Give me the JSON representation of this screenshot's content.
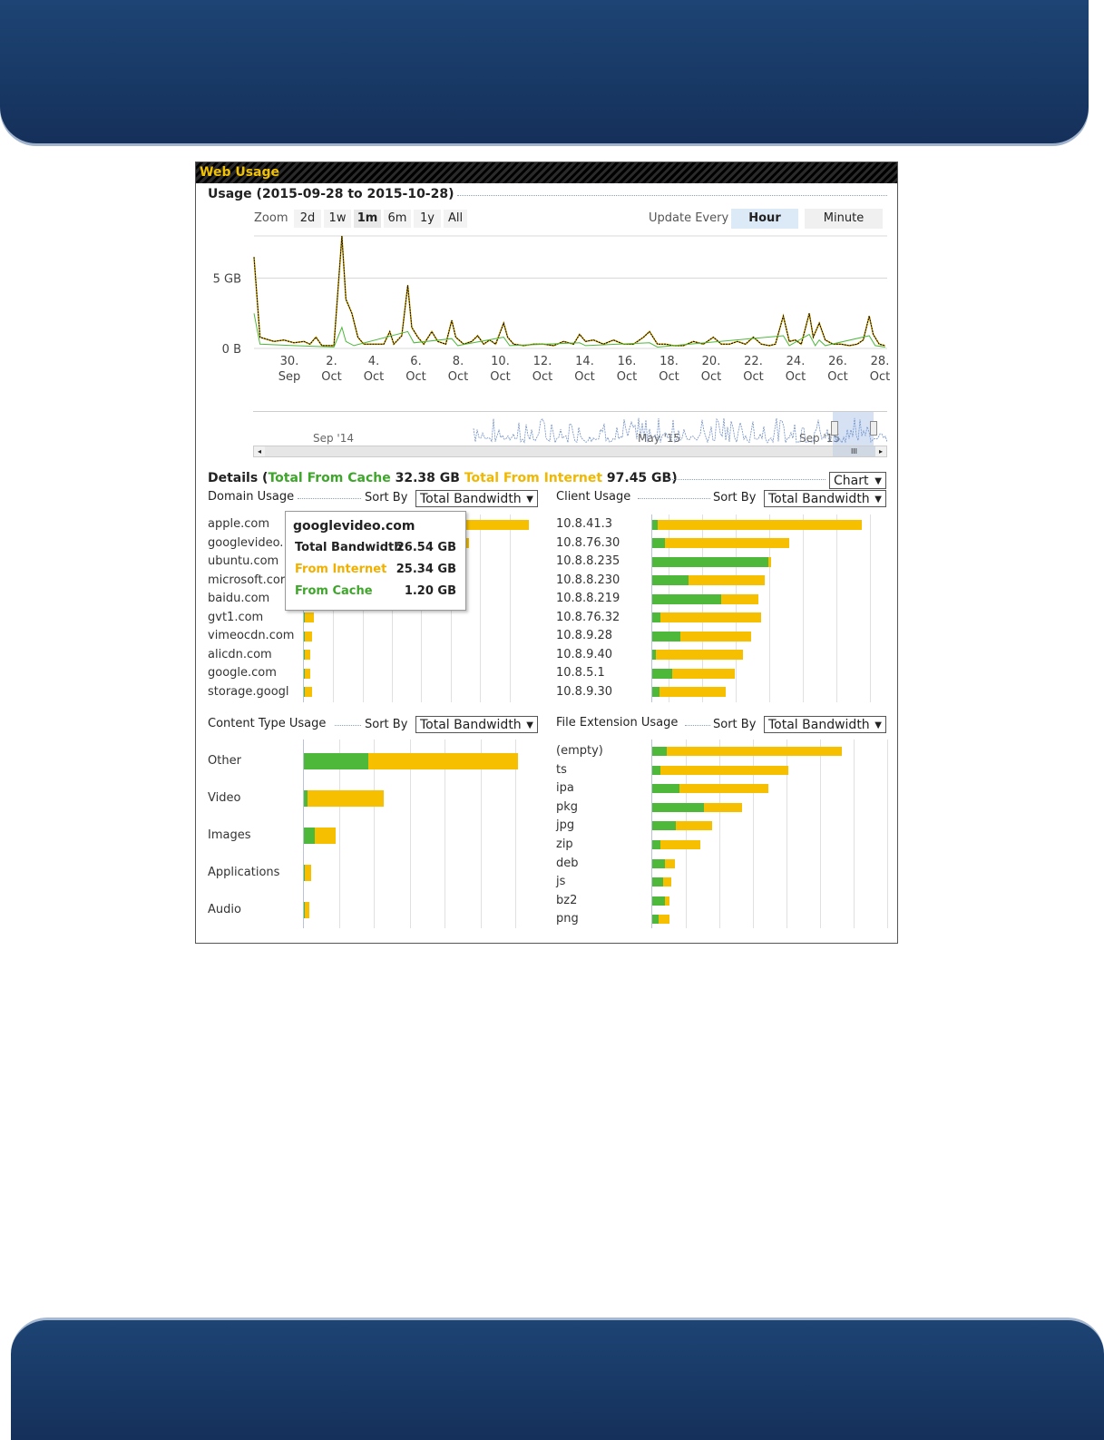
{
  "panel": {
    "title": "Web Usage"
  },
  "usage": {
    "heading": "Usage (2015-09-28 to 2015-10-28)",
    "zoom_label": "Zoom",
    "zoom_buttons": [
      "2d",
      "1w",
      "1m",
      "6m",
      "1y",
      "All"
    ],
    "zoom_active": "1m",
    "update_label": "Update Every",
    "update_buttons": [
      "Hour",
      "Minute"
    ],
    "update_active": "Hour",
    "navigator_labels": [
      "Sep '14",
      "May '15",
      "Sep '15"
    ]
  },
  "chart_data": {
    "type": "line",
    "title": "Usage (2015-09-28 to 2015-10-28)",
    "y_ticks": [
      "5 GB",
      "0 B"
    ],
    "ylim": [
      0,
      8
    ],
    "y_unit": "GB",
    "x_ticks": [
      [
        "30.",
        "Sep"
      ],
      [
        "2.",
        "Oct"
      ],
      [
        "4.",
        "Oct"
      ],
      [
        "6.",
        "Oct"
      ],
      [
        "8.",
        "Oct"
      ],
      [
        "10.",
        "Oct"
      ],
      [
        "12.",
        "Oct"
      ],
      [
        "14.",
        "Oct"
      ],
      [
        "16.",
        "Oct"
      ],
      [
        "18.",
        "Oct"
      ],
      [
        "20.",
        "Oct"
      ],
      [
        "22.",
        "Oct"
      ],
      [
        "24.",
        "Oct"
      ],
      [
        "26.",
        "Oct"
      ],
      [
        "28.",
        "Oct"
      ]
    ],
    "x_range_days": [
      "2015-09-28",
      "2015-10-28"
    ],
    "series": [
      {
        "color": "#000000",
        "points": [
          [
            0,
            6.5
          ],
          [
            0.3,
            0.8
          ],
          [
            1,
            0.5
          ],
          [
            1.5,
            0.6
          ],
          [
            2,
            0.4
          ],
          [
            2.5,
            0.5
          ],
          [
            2.8,
            0.3
          ],
          [
            3.1,
            0.8
          ],
          [
            3.4,
            0.2
          ],
          [
            4.0,
            0.2
          ],
          [
            4.4,
            8.0
          ],
          [
            4.6,
            3.5
          ],
          [
            4.9,
            2.5
          ],
          [
            5.2,
            0.8
          ],
          [
            5.5,
            0.3
          ],
          [
            6.0,
            0.3
          ],
          [
            6.5,
            0.3
          ],
          [
            6.8,
            1.2
          ],
          [
            7.0,
            0.3
          ],
          [
            7.4,
            0.9
          ],
          [
            7.7,
            4.5
          ],
          [
            7.9,
            1.5
          ],
          [
            8.2,
            0.8
          ],
          [
            8.5,
            0.3
          ],
          [
            8.9,
            1.2
          ],
          [
            9.2,
            0.5
          ],
          [
            9.6,
            0.3
          ],
          [
            9.9,
            2.0
          ],
          [
            10.1,
            0.8
          ],
          [
            10.5,
            0.3
          ],
          [
            10.9,
            0.5
          ],
          [
            11.2,
            0.9
          ],
          [
            11.5,
            0.3
          ],
          [
            11.8,
            0.6
          ],
          [
            12.1,
            0.3
          ],
          [
            12.5,
            1.8
          ],
          [
            12.7,
            0.8
          ],
          [
            13.0,
            0.3
          ],
          [
            13.5,
            0.2
          ],
          [
            14.0,
            0.3
          ],
          [
            14.5,
            0.3
          ],
          [
            15.0,
            0.2
          ],
          [
            15.5,
            0.5
          ],
          [
            16.0,
            0.3
          ],
          [
            16.3,
            1.0
          ],
          [
            16.6,
            0.5
          ],
          [
            17.0,
            0.6
          ],
          [
            17.5,
            0.3
          ],
          [
            18.0,
            0.6
          ],
          [
            18.5,
            0.3
          ],
          [
            19.0,
            0.3
          ],
          [
            19.5,
            0.8
          ],
          [
            19.8,
            1.2
          ],
          [
            20.2,
            0.3
          ],
          [
            20.6,
            0.3
          ],
          [
            21.0,
            0.2
          ],
          [
            21.5,
            0.2
          ],
          [
            22.0,
            0.5
          ],
          [
            22.5,
            0.3
          ],
          [
            23.0,
            0.8
          ],
          [
            23.4,
            0.3
          ],
          [
            23.8,
            0.3
          ],
          [
            24.2,
            0.5
          ],
          [
            24.6,
            0.3
          ],
          [
            25.0,
            0.8
          ],
          [
            25.4,
            0.3
          ],
          [
            25.8,
            0.2
          ],
          [
            26.1,
            0.3
          ],
          [
            26.5,
            2.3
          ],
          [
            26.8,
            0.5
          ],
          [
            27.1,
            0.6
          ],
          [
            27.4,
            0.3
          ],
          [
            27.8,
            2.5
          ],
          [
            28.0,
            0.8
          ],
          [
            28.3,
            1.8
          ],
          [
            28.6,
            0.6
          ],
          [
            29.0,
            0.3
          ],
          [
            29.4,
            0.3
          ],
          [
            29.8,
            0.2
          ],
          [
            30.2,
            0.3
          ],
          [
            30.5,
            0.6
          ],
          [
            30.8,
            2.3
          ],
          [
            31.0,
            1.0
          ],
          [
            31.3,
            0.3
          ],
          [
            31.6,
            0.2
          ]
        ]
      },
      {
        "color": "#4db83a",
        "points": [
          [
            0,
            2.5
          ],
          [
            0.3,
            0.3
          ],
          [
            2,
            0.2
          ],
          [
            4.0,
            0.1
          ],
          [
            4.4,
            1.5
          ],
          [
            4.6,
            0.5
          ],
          [
            5.0,
            0.2
          ],
          [
            7.7,
            1.2
          ],
          [
            8.0,
            0.4
          ],
          [
            9.9,
            0.7
          ],
          [
            10.2,
            0.2
          ],
          [
            12.5,
            0.8
          ],
          [
            12.8,
            0.2
          ],
          [
            16.3,
            0.4
          ],
          [
            16.6,
            0.2
          ],
          [
            19.8,
            0.4
          ],
          [
            20.2,
            0.1
          ],
          [
            26.5,
            0.9
          ],
          [
            26.8,
            0.2
          ],
          [
            27.8,
            1.0
          ],
          [
            28.1,
            0.2
          ],
          [
            28.3,
            0.6
          ],
          [
            28.6,
            0.2
          ],
          [
            30.8,
            0.9
          ],
          [
            31.1,
            0.2
          ],
          [
            31.6,
            0.1
          ]
        ]
      }
    ],
    "detail_charts": [
      {
        "type": "bar",
        "title": "Domain Usage",
        "categories": [
          "apple.com",
          "googlevideo.com",
          "ubuntu.com",
          "microsoft.com",
          "baidu.com",
          "gvt1.com",
          "vimeocdn.com",
          "alicdn.com",
          "google.com",
          "storage.googleapis.com"
        ],
        "series": [
          {
            "name": "From Cache",
            "values": [
              1.6,
              1.2,
              0.8,
              0.7,
              0.5,
              0.1,
              0.1,
              0.1,
              0.1,
              0.1
            ]
          },
          {
            "name": "From Internet",
            "values": [
              34.5,
              25.34,
              14,
              12,
              9.5,
              1.5,
              1.2,
              0.9,
              0.9,
              1.1
            ]
          }
        ],
        "xlim": [
          0,
          40
        ]
      },
      {
        "type": "bar",
        "title": "Client Usage",
        "categories": [
          "10.8.41.3",
          "10.8.76.30",
          "10.8.8.235",
          "10.8.8.230",
          "10.8.8.219",
          "10.8.76.32",
          "10.8.9.28",
          "10.8.9.40",
          "10.8.5.1",
          "10.8.9.30"
        ],
        "series": [
          {
            "name": "From Cache",
            "values": [
              0.7,
              1.6,
              14.5,
              4.5,
              8.6,
              1.0,
              3.5,
              0.4,
              2.5,
              0.9
            ]
          },
          {
            "name": "From Internet",
            "values": [
              25.5,
              15.5,
              0.3,
              9.5,
              4.7,
              12.6,
              8.8,
              10.9,
              7.8,
              8.3
            ]
          }
        ],
        "xlim": [
          0,
          29
        ]
      },
      {
        "type": "bar",
        "title": "Content Type Usage",
        "categories": [
          "Other",
          "Video",
          "Images",
          "Applications",
          "Audio"
        ],
        "series": [
          {
            "name": "From Cache",
            "values": [
              21.8,
              1.2,
              3.6,
              0.3,
              0.3
            ]
          },
          {
            "name": "From Internet",
            "values": [
              50.2,
              25.7,
              7.0,
              2.1,
              1.5
            ]
          }
        ],
        "xlim": [
          0,
          84
        ]
      },
      {
        "type": "bar",
        "title": "File Extension Usage",
        "categories": [
          "(empty)",
          "ts",
          "ipa",
          "pkg",
          "jpg",
          "zip",
          "deb",
          "js",
          "bz2",
          "png"
        ],
        "series": [
          {
            "name": "From Cache",
            "values": [
              1.8,
              1.0,
              3.3,
              6.3,
              2.9,
              1.0,
              1.5,
              1.3,
              1.5,
              0.8
            ]
          },
          {
            "name": "From Internet",
            "values": [
              21.2,
              15.5,
              10.8,
              4.6,
              4.4,
              4.8,
              1.3,
              1.0,
              0.6,
              1.3
            ]
          }
        ],
        "xlim": [
          0,
          28
        ]
      }
    ]
  },
  "details": {
    "heading_prefix": "Details (",
    "cache_label": "Total From Cache",
    "cache_value": "32.38 GB",
    "internet_label": "Total From Internet",
    "internet_value": "97.45 GB",
    "heading_suffix": ")",
    "view_select": "Chart",
    "domain": {
      "title": "Domain Usage",
      "sort_label": "Sort By",
      "sort_value": "Total Bandwidth",
      "labels": [
        "apple.com",
        "googlevideo.",
        "ubuntu.com",
        "microsoft.cor",
        "baidu.com",
        "gvt1.com",
        "vimeocdn.com",
        "alicdn.com",
        "google.com",
        "storage.googl"
      ]
    },
    "client": {
      "title": "Client Usage",
      "sort_label": "Sort By",
      "sort_value": "Total Bandwidth"
    },
    "content": {
      "title": "Content Type Usage",
      "sort_label": "Sort By",
      "sort_value": "Total Bandwidth"
    },
    "fileext": {
      "title": "File Extension Usage",
      "sort_label": "Sort By",
      "sort_value": "Total Bandwidth"
    }
  },
  "tooltip": {
    "title": "googlevideo.com",
    "total_label": "Total Bandwidth",
    "total_value": "26.54 GB",
    "internet_label": "From Internet",
    "internet_value": "25.34 GB",
    "cache_label": "From Cache",
    "cache_value": "1.20 GB"
  },
  "colors": {
    "cache": "#4db83a",
    "internet": "#f6c000",
    "banner": "#1a3c68"
  }
}
